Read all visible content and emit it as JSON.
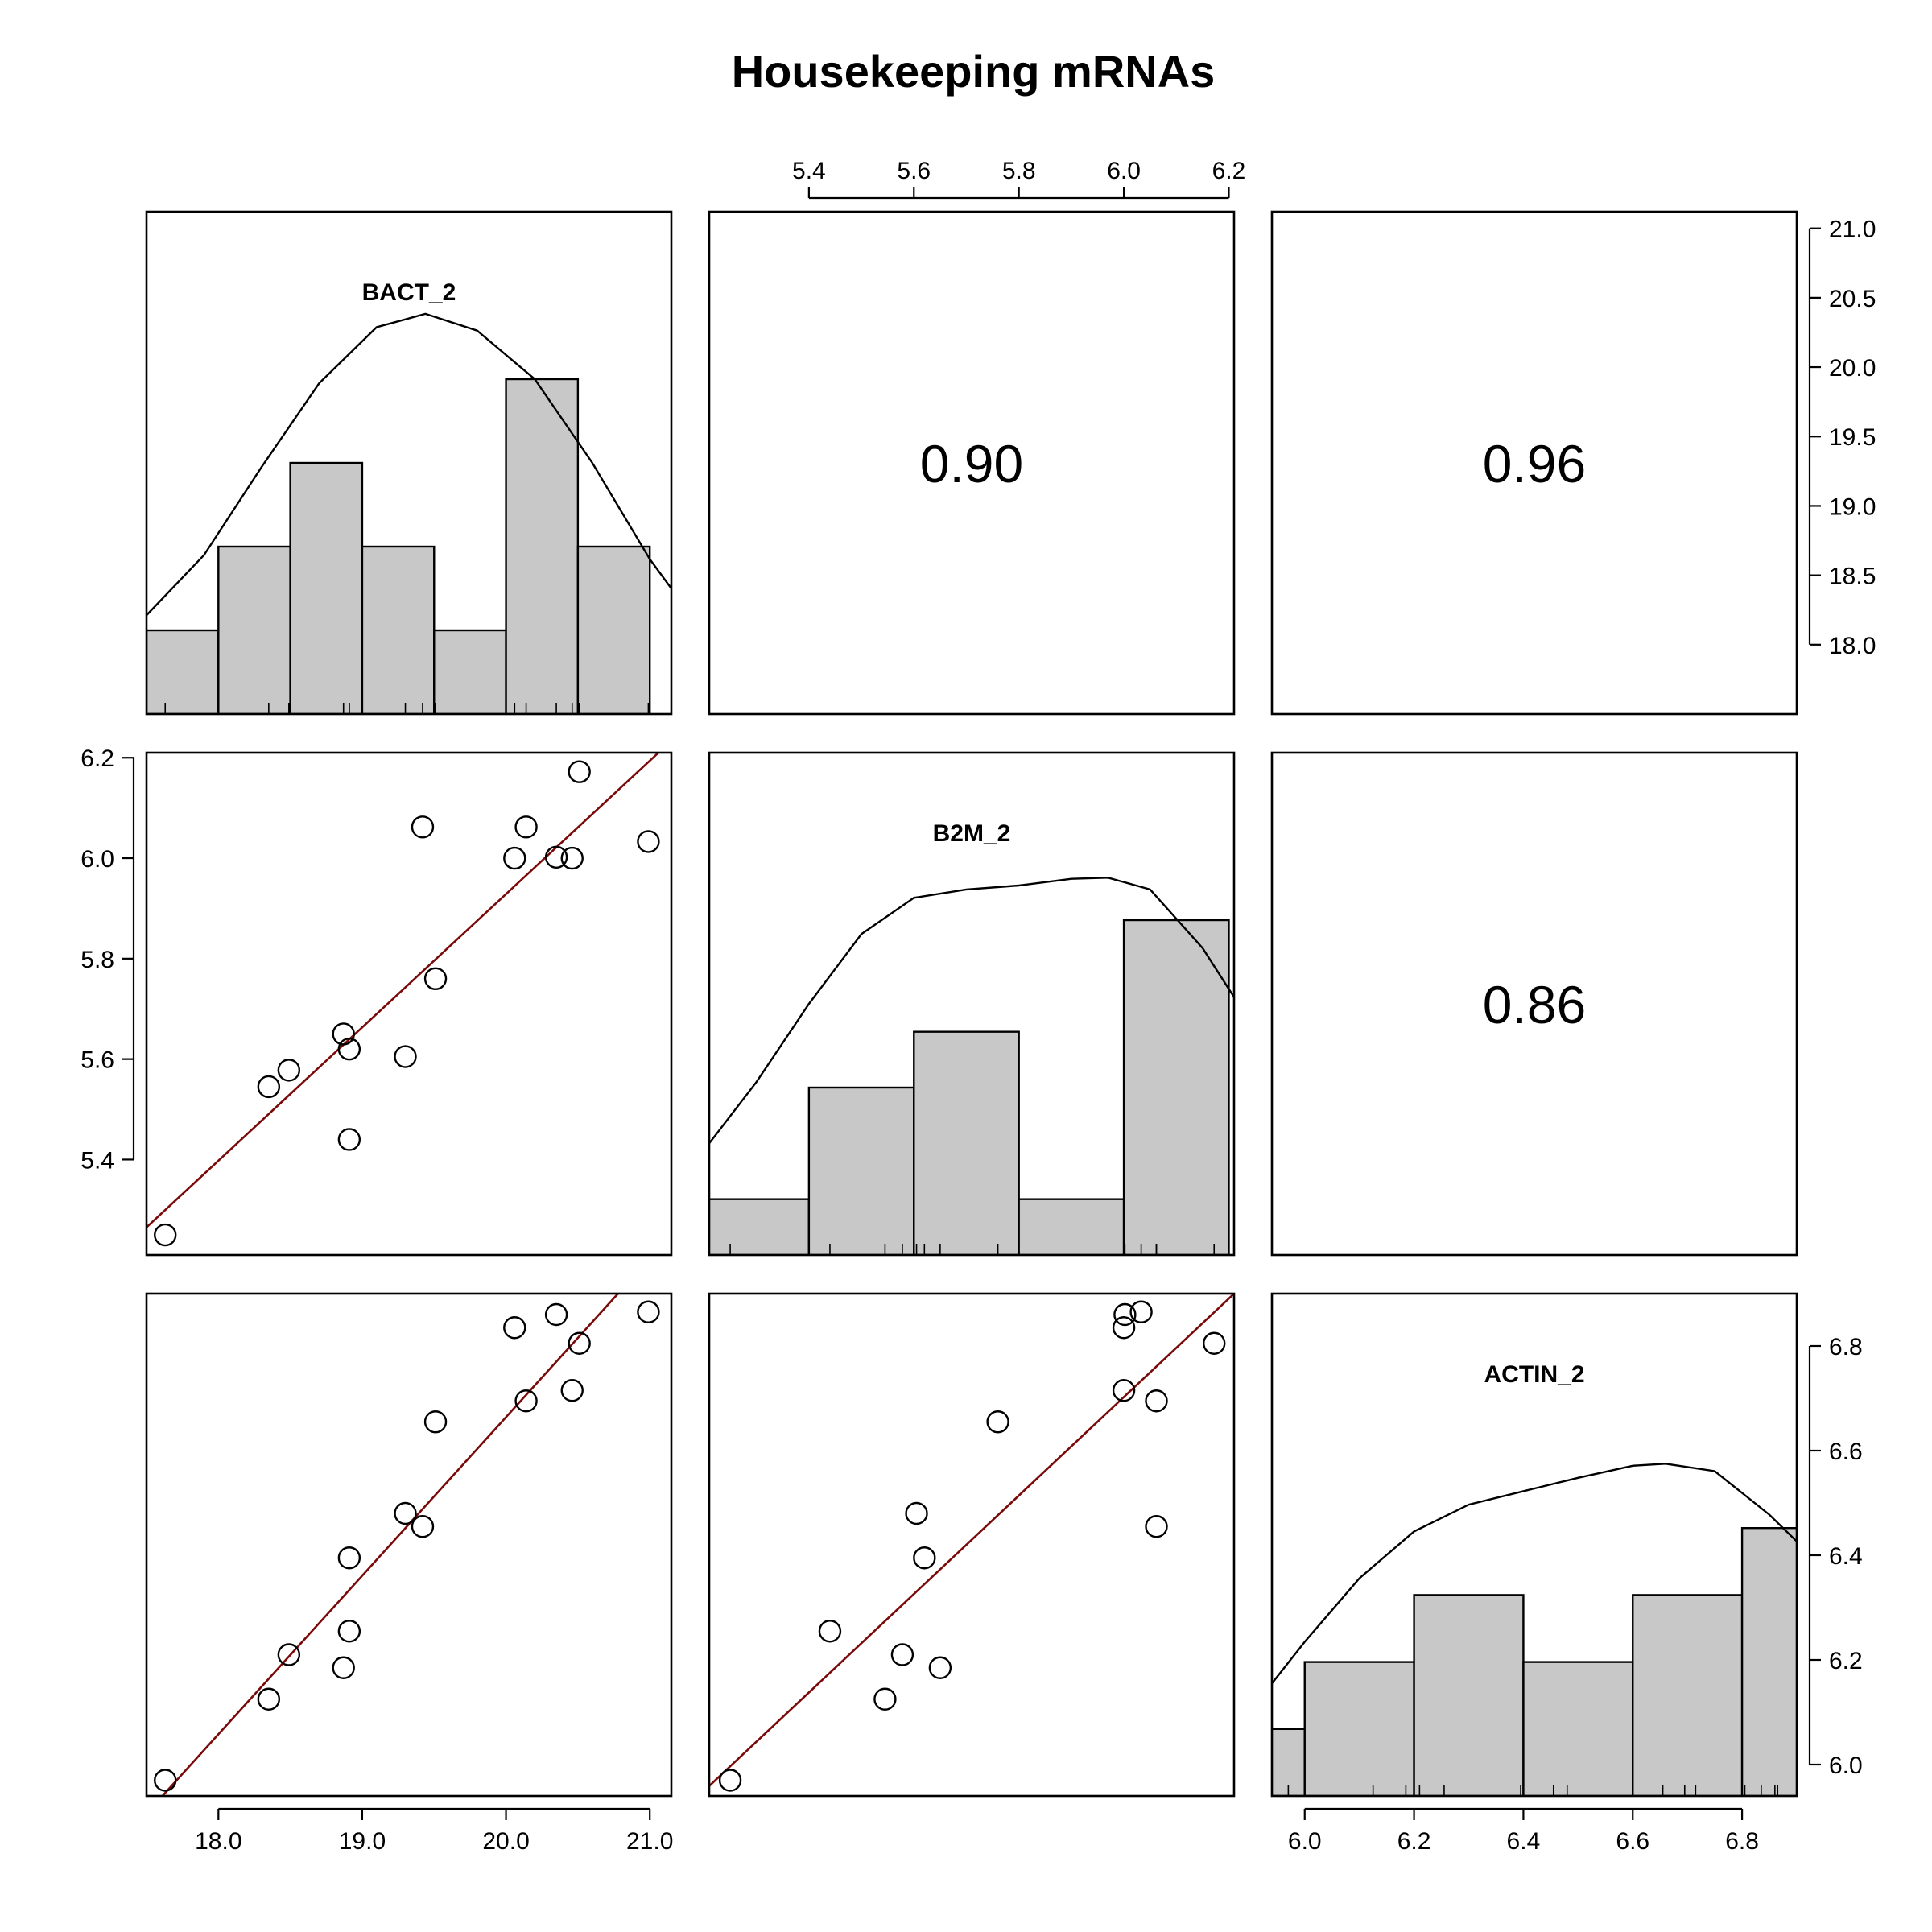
{
  "title": "Housekeeping mRNAs",
  "colors": {
    "bar_fill": "#c8c8c8",
    "fit_line": "#7a0a0a",
    "points": "#000000"
  },
  "chart_data": {
    "type": "scatter",
    "kind": "scatterplot-matrix",
    "title": "Housekeeping mRNAs",
    "variables": [
      "BACT_2",
      "B2M_2",
      "ACTIN_2"
    ],
    "ranges": {
      "BACT_2": [
        17.5,
        21.15
      ],
      "B2M_2": [
        5.21,
        6.21
      ],
      "ACTIN_2": [
        5.94,
        6.9
      ]
    },
    "ticks": {
      "BACT_2": [
        "18.0",
        "19.0",
        "20.0",
        "21.0"
      ],
      "BACT_2_right": [
        "18.0",
        "18.5",
        "19.0",
        "19.5",
        "20.0",
        "20.5",
        "21.0"
      ],
      "B2M_2": [
        "5.4",
        "5.6",
        "5.8",
        "6.0",
        "6.2"
      ],
      "ACTIN_2": [
        "6.0",
        "6.2",
        "6.4",
        "6.6",
        "6.8"
      ]
    },
    "points": {
      "BACT_2": [
        17.63,
        18.35,
        18.49,
        18.87,
        18.91,
        18.91,
        19.3,
        19.42,
        19.51,
        20.06,
        20.14,
        20.35,
        20.46,
        20.51,
        20.99
      ],
      "B2M_2": [
        5.25,
        5.545,
        5.578,
        5.65,
        5.62,
        5.44,
        5.605,
        6.062,
        5.76,
        6.0,
        6.062,
        6.002,
        6.0,
        6.172,
        6.033
      ],
      "ACTIN_2": [
        5.97,
        6.125,
        6.21,
        6.185,
        6.395,
        6.255,
        6.48,
        6.455,
        6.655,
        6.835,
        6.695,
        6.86,
        6.715,
        6.805,
        6.865
      ]
    },
    "correlations": [
      {
        "vars": [
          "BACT_2",
          "B2M_2"
        ],
        "label": "0.90"
      },
      {
        "vars": [
          "BACT_2",
          "ACTIN_2"
        ],
        "label": "0.96"
      },
      {
        "vars": [
          "B2M_2",
          "ACTIN_2"
        ],
        "label": "0.86"
      }
    ],
    "histograms": {
      "BACT_2": {
        "breaks": [
          17.5,
          18.0,
          18.5,
          19.0,
          19.5,
          20.0,
          20.5,
          21.0
        ],
        "counts": [
          1,
          2,
          3,
          2,
          1,
          4,
          2
        ],
        "ymax": 6
      },
      "B2M_2": {
        "breaks": [
          5.2,
          5.4,
          5.6,
          5.8,
          6.0,
          6.2
        ],
        "counts": [
          1,
          3,
          4,
          1,
          6
        ],
        "ymax": 9
      },
      "ACTIN_2": {
        "breaks": [
          5.8,
          6.0,
          6.2,
          6.4,
          6.6,
          6.8,
          7.0
        ],
        "counts": [
          1,
          2,
          3,
          2,
          3,
          4
        ],
        "ymax": 7.5
      }
    },
    "density": {
      "BACT_2": {
        "x": [
          17.5,
          17.9,
          18.3,
          18.7,
          19.1,
          19.44,
          19.8,
          20.2,
          20.6,
          21.0,
          21.15
        ],
        "y": [
          1.18,
          1.9,
          2.95,
          3.95,
          4.62,
          4.78,
          4.58,
          4.0,
          3.0,
          1.85,
          1.5
        ]
      },
      "B2M_2": {
        "x": [
          5.21,
          5.3,
          5.4,
          5.5,
          5.6,
          5.7,
          5.8,
          5.9,
          5.97,
          6.05,
          6.15,
          6.21
        ],
        "y": [
          2.0,
          3.1,
          4.5,
          5.75,
          6.4,
          6.55,
          6.62,
          6.74,
          6.76,
          6.55,
          5.5,
          4.62
        ]
      },
      "ACTIN_2": {
        "x": [
          5.94,
          6.0,
          6.1,
          6.2,
          6.3,
          6.4,
          6.5,
          6.6,
          6.66,
          6.75,
          6.85,
          6.9
        ],
        "y": [
          1.68,
          2.3,
          3.25,
          3.95,
          4.35,
          4.55,
          4.75,
          4.93,
          4.96,
          4.85,
          4.2,
          3.8
        ]
      }
    }
  }
}
